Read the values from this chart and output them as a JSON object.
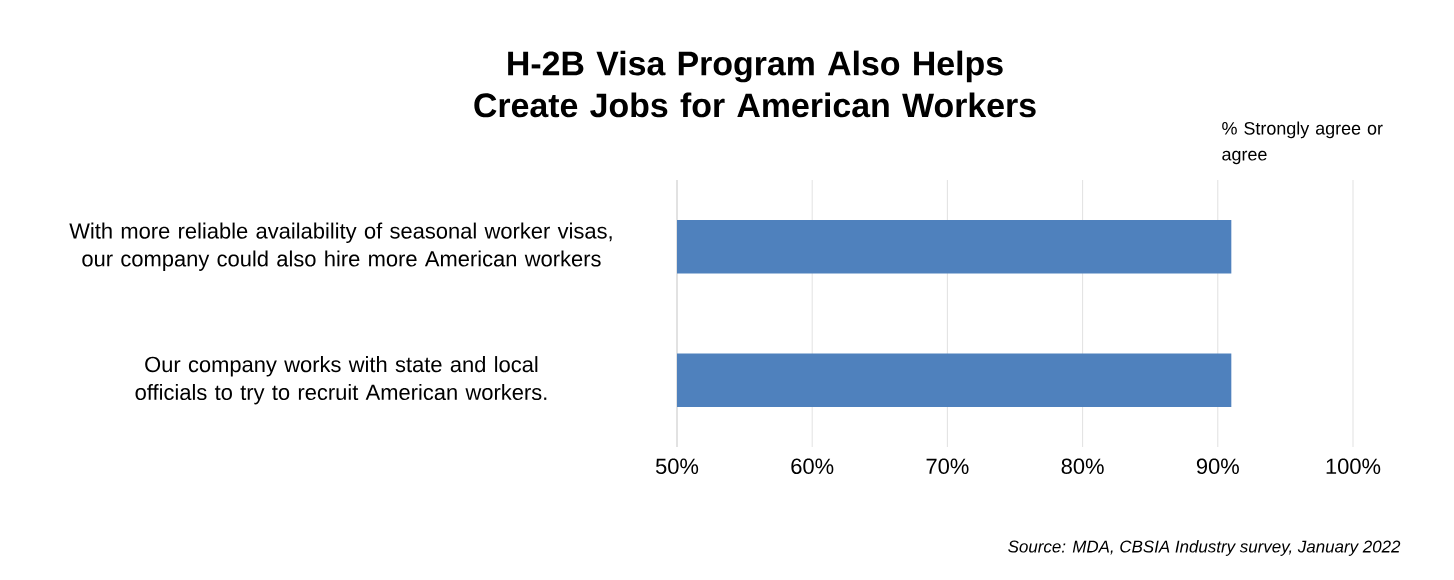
{
  "chart_data": {
    "type": "bar",
    "orientation": "horizontal",
    "title": "H-2B Visa Program Also Helps Create Jobs for American Workers",
    "xlabel": "% Strongly agree or agree",
    "categories": [
      "With more reliable availability of seasonal worker visas, our company could also hire more American workers",
      "Our company works with state and local officials to try to recruit American workers."
    ],
    "values": [
      91,
      91
    ],
    "color": "#4f81bd",
    "xlim": [
      50,
      100
    ],
    "xticks": [
      {
        "value": 50,
        "label": "50%"
      },
      {
        "value": 60,
        "label": "60%"
      },
      {
        "value": 70,
        "label": "70%"
      },
      {
        "value": 80,
        "label": "80%"
      },
      {
        "value": 90,
        "label": "90%"
      },
      {
        "value": 100,
        "label": "100%"
      }
    ],
    "grid": "x",
    "annotations": [
      "Source: MDA, CBSIA Industry survey, January 2022"
    ]
  }
}
